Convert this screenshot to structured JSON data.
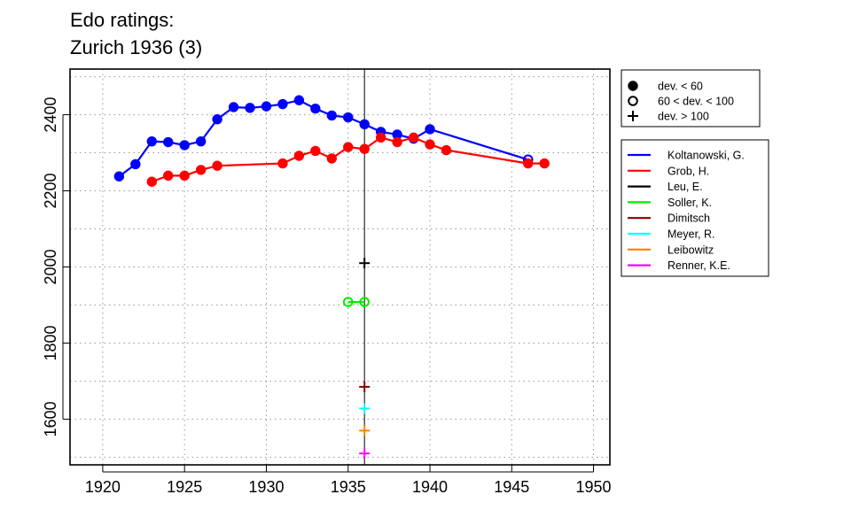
{
  "chart_data": {
    "type": "line",
    "title_lines": [
      "Edo ratings:",
      "Zurich 1936 (3)"
    ],
    "xlim": [
      1918,
      1951
    ],
    "ylim": [
      1480,
      2520
    ],
    "x_ticks": [
      1920,
      1925,
      1930,
      1935,
      1940,
      1945,
      1950
    ],
    "y_ticks": [
      1600,
      1800,
      2000,
      2200,
      2400
    ],
    "y_grid": [
      1500,
      1600,
      1700,
      1800,
      1900,
      2000,
      2100,
      2200,
      2300,
      2400,
      2500
    ],
    "grid": "dotted",
    "vline_x": 1936,
    "legend_position": "right",
    "marker_legend": [
      {
        "marker": "dot",
        "label": "dev. < 60"
      },
      {
        "marker": "circle",
        "label": "60 < dev. < 100"
      },
      {
        "marker": "plus",
        "label": "dev. > 100"
      }
    ],
    "series": [
      {
        "name": "Koltanowski, G.",
        "color": "#0000ff",
        "points": [
          {
            "x": 1921,
            "y": 2238,
            "m": "dot"
          },
          {
            "x": 1922,
            "y": 2270,
            "m": "dot"
          },
          {
            "x": 1923,
            "y": 2330,
            "m": "dot"
          },
          {
            "x": 1924,
            "y": 2328,
            "m": "dot"
          },
          {
            "x": 1925,
            "y": 2320,
            "m": "dot"
          },
          {
            "x": 1926,
            "y": 2330,
            "m": "dot"
          },
          {
            "x": 1927,
            "y": 2388,
            "m": "dot"
          },
          {
            "x": 1928,
            "y": 2420,
            "m": "dot"
          },
          {
            "x": 1929,
            "y": 2418,
            "m": "dot"
          },
          {
            "x": 1930,
            "y": 2422,
            "m": "dot"
          },
          {
            "x": 1931,
            "y": 2428,
            "m": "dot"
          },
          {
            "x": 1932,
            "y": 2438,
            "m": "dot"
          },
          {
            "x": 1933,
            "y": 2416,
            "m": "dot"
          },
          {
            "x": 1934,
            "y": 2398,
            "m": "dot"
          },
          {
            "x": 1935,
            "y": 2393,
            "m": "dot"
          },
          {
            "x": 1936,
            "y": 2375,
            "m": "dot"
          },
          {
            "x": 1937,
            "y": 2355,
            "m": "dot"
          },
          {
            "x": 1938,
            "y": 2348,
            "m": "dot"
          },
          {
            "x": 1939,
            "y": 2337,
            "m": "dot"
          },
          {
            "x": 1940,
            "y": 2362,
            "m": "dot"
          },
          {
            "x": 1946,
            "y": 2282,
            "m": "circle"
          }
        ]
      },
      {
        "name": "Grob, H.",
        "color": "#ff0000",
        "points": [
          {
            "x": 1923,
            "y": 2224,
            "m": "dot"
          },
          {
            "x": 1924,
            "y": 2240,
            "m": "dot"
          },
          {
            "x": 1925,
            "y": 2240,
            "m": "dot"
          },
          {
            "x": 1926,
            "y": 2255,
            "m": "dot"
          },
          {
            "x": 1927,
            "y": 2266,
            "m": "dot"
          },
          {
            "x": 1931,
            "y": 2272,
            "m": "dot"
          },
          {
            "x": 1932,
            "y": 2292,
            "m": "dot"
          },
          {
            "x": 1933,
            "y": 2305,
            "m": "dot"
          },
          {
            "x": 1934,
            "y": 2285,
            "m": "dot"
          },
          {
            "x": 1935,
            "y": 2315,
            "m": "dot"
          },
          {
            "x": 1936,
            "y": 2310,
            "m": "dot"
          },
          {
            "x": 1937,
            "y": 2340,
            "m": "dot"
          },
          {
            "x": 1938,
            "y": 2328,
            "m": "dot"
          },
          {
            "x": 1939,
            "y": 2340,
            "m": "dot"
          },
          {
            "x": 1940,
            "y": 2322,
            "m": "dot"
          },
          {
            "x": 1941,
            "y": 2307,
            "m": "dot"
          },
          {
            "x": 1946,
            "y": 2272,
            "m": "dot"
          },
          {
            "x": 1947,
            "y": 2272,
            "m": "dot"
          }
        ]
      },
      {
        "name": "Leu, E.",
        "color": "#000000",
        "points": [
          {
            "x": 1936,
            "y": 2010,
            "m": "plus"
          }
        ]
      },
      {
        "name": "Soller, K.",
        "color": "#00ee00",
        "points": [
          {
            "x": 1935,
            "y": 1908,
            "m": "circle"
          },
          {
            "x": 1936,
            "y": 1908,
            "m": "circle"
          }
        ]
      },
      {
        "name": "Dimitsch",
        "color": "#8b0000",
        "points": [
          {
            "x": 1936,
            "y": 1685,
            "m": "plus"
          }
        ]
      },
      {
        "name": "Meyer, R.",
        "color": "#00ffff",
        "points": [
          {
            "x": 1936,
            "y": 1628,
            "m": "plus"
          }
        ]
      },
      {
        "name": "Leibowitz",
        "color": "#ff7f00",
        "points": [
          {
            "x": 1936,
            "y": 1570,
            "m": "plus"
          }
        ]
      },
      {
        "name": "Renner, K.E.",
        "color": "#ff00ff",
        "points": [
          {
            "x": 1936,
            "y": 1510,
            "m": "plus"
          }
        ]
      }
    ]
  }
}
